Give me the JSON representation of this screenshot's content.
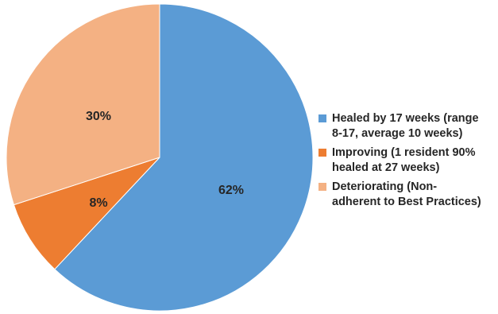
{
  "chart_data": {
    "type": "pie",
    "title": "",
    "start_angle_deg": 0,
    "direction": "clockwise",
    "slices": [
      {
        "label": "Healed by 17 weeks (range 8-17, average 10 weeks)",
        "value": 62,
        "display": "62%",
        "color": "#5b9bd5"
      },
      {
        "label": "Improving (1 resident 90% healed at 27 weeks)",
        "value": 8,
        "display": "8%",
        "color": "#ed7d31"
      },
      {
        "label": "Deteriorating (Non-adherent to Best Practices)",
        "value": 30,
        "display": "30%",
        "color": "#f4b183"
      }
    ],
    "legend": {
      "position": "right",
      "lines": [
        [
          "Healed by 17 weeks (range",
          "8-17, average 10 weeks)"
        ],
        [
          "Improving (1 resident 90%",
          "healed at 27 weeks)"
        ],
        [
          "Deteriorating (Non-",
          "adherent to Best Practices)"
        ]
      ]
    }
  }
}
